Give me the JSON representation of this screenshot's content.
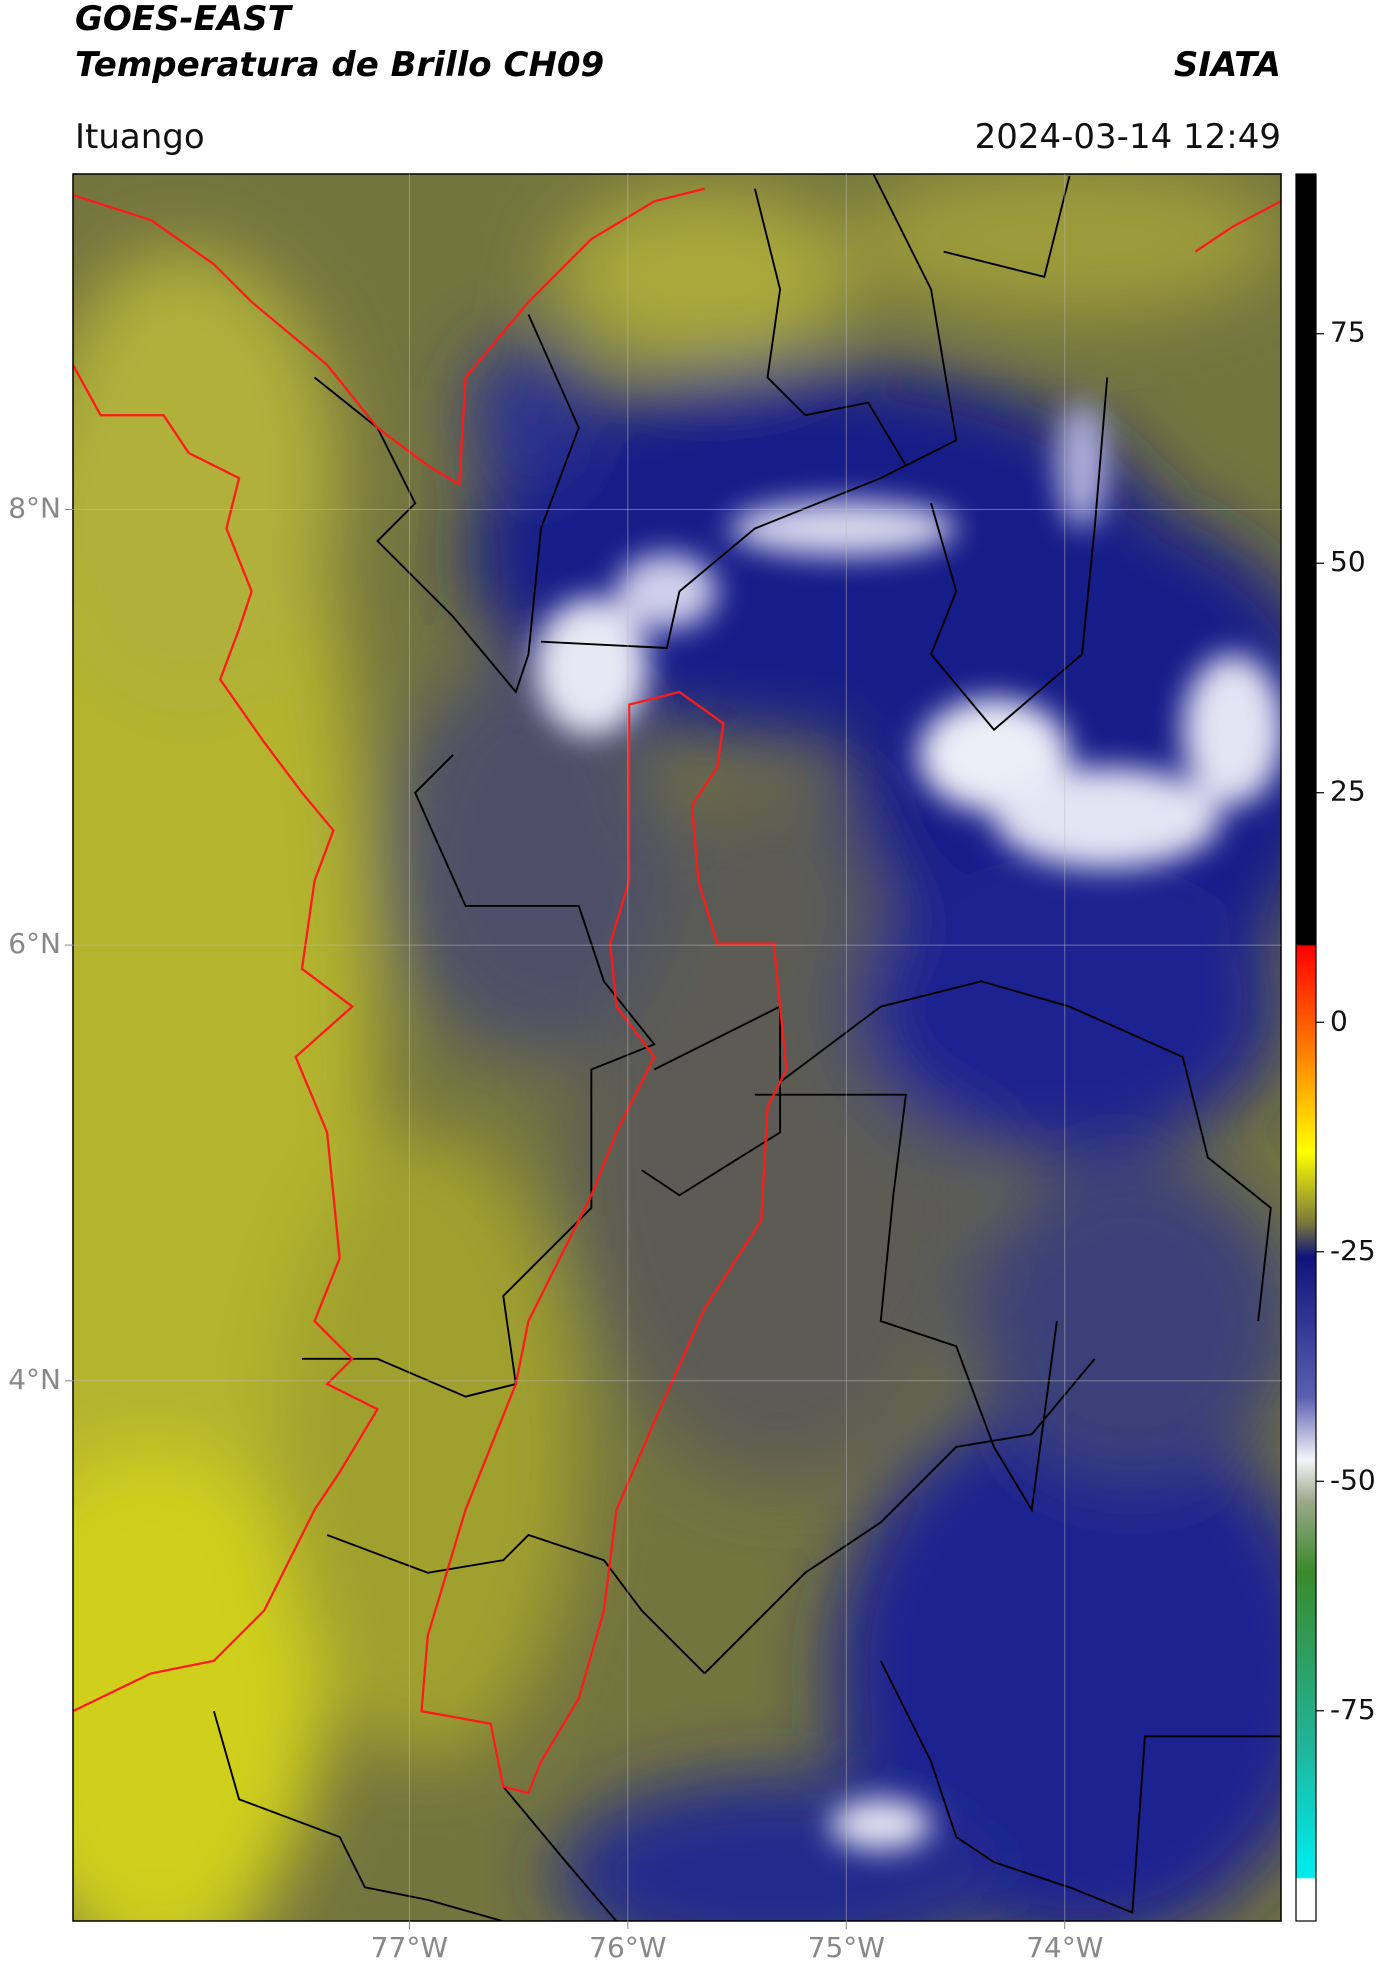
{
  "header": {
    "title": "GOES-EAST",
    "subtitle": "Temperatura de Brillo CH09",
    "source": "SIATA",
    "location": "Ituango",
    "timestamp": "2024-03-14 12:49"
  },
  "map": {
    "xlim": [
      -78.54,
      -73.01
    ],
    "ylim": [
      1.52,
      9.54
    ],
    "xticks": [
      {
        "value": -77,
        "label": "77°W"
      },
      {
        "value": -76,
        "label": "76°W"
      },
      {
        "value": -75,
        "label": "75°W"
      },
      {
        "value": -74,
        "label": "74°W"
      }
    ],
    "yticks": [
      {
        "value": 4,
        "label": "4°N"
      },
      {
        "value": 6,
        "label": "6°N"
      },
      {
        "value": 8,
        "label": "8°N"
      }
    ],
    "grid": true
  },
  "colorbar": {
    "lim": [
      -97.9,
      92.4
    ],
    "ticks": [
      -75,
      -50,
      -25,
      0,
      25,
      50,
      75
    ]
  }
}
